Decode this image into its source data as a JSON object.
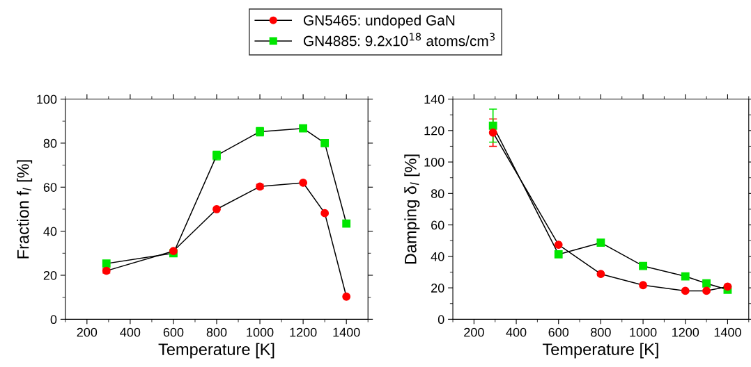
{
  "chart_data": [
    {
      "type": "line",
      "xlabel": "Temperature [K]",
      "ylabel": "Fraction f$_{l}$ [%]",
      "xlim": [
        100,
        1500
      ],
      "xticks": [
        200,
        400,
        600,
        800,
        1000,
        1200,
        1400
      ],
      "ylim": [
        0,
        100
      ],
      "yticks": [
        0,
        20,
        40,
        60,
        80,
        100
      ],
      "legend": "top",
      "grid": false,
      "series": [
        {
          "name": "GN5465: undoped GaN",
          "color": "#ff0000",
          "marker": "circle",
          "x": [
            290,
            600,
            800,
            1000,
            1200,
            1300,
            1400
          ],
          "values": [
            22,
            31,
            50,
            60.3,
            62,
            48.2,
            10.3
          ],
          "errors": [
            1,
            null,
            null,
            1,
            null,
            null,
            null
          ]
        },
        {
          "name": "GN4885: 9.2x10$^{18}$ atoms/cm$^{3}$",
          "color": "#00e600",
          "marker": "square",
          "x": [
            290,
            600,
            800,
            1000,
            1200,
            1300,
            1400
          ],
          "values": [
            25.3,
            30,
            74.4,
            85.2,
            86.7,
            80,
            43.5
          ],
          "errors": [
            null,
            null,
            2,
            1.9,
            1,
            null,
            null
          ]
        }
      ]
    },
    {
      "type": "line",
      "xlabel": "Temperature [K]",
      "ylabel": "Damping δ$_{l}$ [%]",
      "xlim": [
        100,
        1500
      ],
      "xticks": [
        200,
        400,
        600,
        800,
        1000,
        1200,
        1400
      ],
      "ylim": [
        0,
        140
      ],
      "yticks": [
        0,
        20,
        40,
        60,
        80,
        100,
        120,
        140
      ],
      "grid": false,
      "series": [
        {
          "color": "#ff0000",
          "marker": "circle",
          "x": [
            290,
            600,
            800,
            1000,
            1200,
            1300,
            1400
          ],
          "values": [
            118.7,
            47.4,
            28.8,
            21.7,
            18.1,
            18.1,
            20.8
          ],
          "errors": [
            8.7,
            null,
            null,
            null,
            null,
            null,
            null
          ]
        },
        {
          "color": "#00e600",
          "marker": "square",
          "x": [
            290,
            600,
            800,
            1000,
            1200,
            1300,
            1400
          ],
          "values": [
            123.1,
            41.3,
            48.7,
            33.9,
            27.3,
            22.8,
            18.8
          ],
          "errors": [
            10.5,
            null,
            null,
            null,
            null,
            null,
            null
          ]
        }
      ]
    }
  ]
}
